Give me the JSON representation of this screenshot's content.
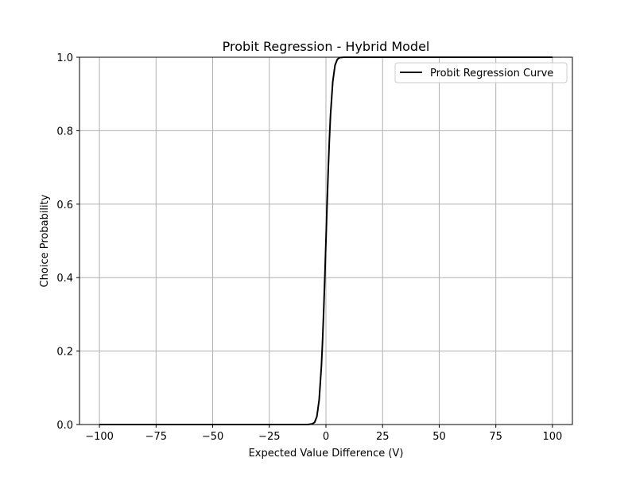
{
  "chart_data": {
    "type": "line",
    "title": "Probit Regression - Hybrid Model",
    "xlabel": "Expected Value Difference (V)",
    "ylabel": "Choice Probability",
    "xlim": [
      -108.8,
      108.8
    ],
    "ylim": [
      0.0,
      1.0
    ],
    "x_ticks": [
      -100,
      -75,
      -50,
      -25,
      0,
      25,
      50,
      75,
      100
    ],
    "x_tick_labels": [
      "−100",
      "−75",
      "−50",
      "−25",
      "0",
      "25",
      "50",
      "75",
      "100"
    ],
    "y_ticks": [
      0.0,
      0.2,
      0.4,
      0.6,
      0.8,
      1.0
    ],
    "y_tick_labels": [
      "0.0",
      "0.2",
      "0.4",
      "0.6",
      "0.8",
      "1.0"
    ],
    "grid": true,
    "legend_position": "top-right",
    "series": [
      {
        "name": "Probit Regression Curve",
        "color": "#000000",
        "x": [
          -100,
          -25,
          -10,
          -8,
          -6,
          -5,
          -4,
          -3,
          -2,
          -1.5,
          -1,
          -0.5,
          0,
          0.5,
          1,
          1.5,
          2,
          3,
          4,
          5,
          6,
          8,
          10,
          25,
          100
        ],
        "y": [
          0.0,
          0.0,
          0.0,
          0.0,
          0.002,
          0.006,
          0.022,
          0.067,
          0.159,
          0.227,
          0.309,
          0.401,
          0.5,
          0.599,
          0.691,
          0.773,
          0.841,
          0.933,
          0.978,
          0.994,
          0.999,
          1.0,
          1.0,
          1.0,
          1.0
        ]
      }
    ]
  }
}
